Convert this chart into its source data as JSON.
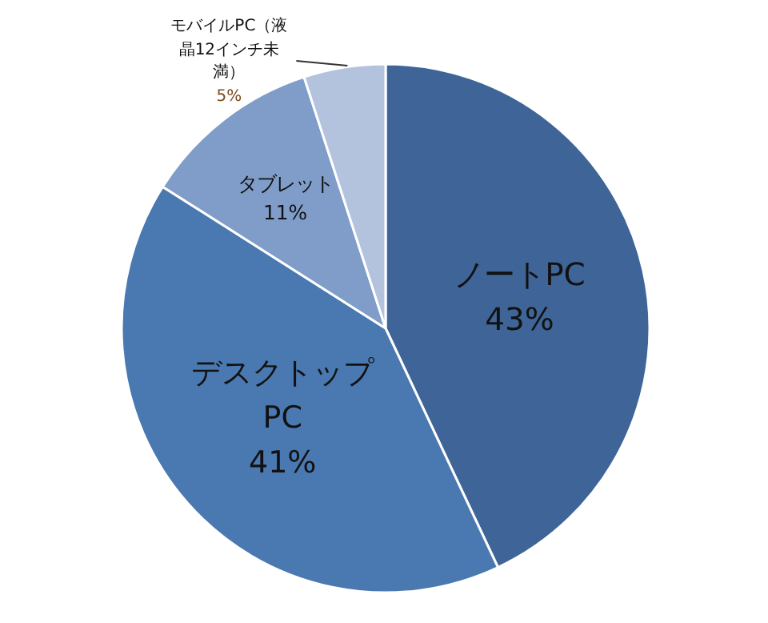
{
  "chart_data": {
    "type": "pie",
    "categories": [
      "ノートPC",
      "デスクトップPC",
      "タブレット",
      "モバイルPC（液晶12インチ未満）"
    ],
    "values": [
      43,
      41,
      11,
      5
    ],
    "colors": [
      "#3f6598",
      "#4a78b0",
      "#7f9dc8",
      "#b3c3de"
    ],
    "value_labels": [
      "43%",
      "41%",
      "11%",
      "5%"
    ],
    "legend": false
  }
}
